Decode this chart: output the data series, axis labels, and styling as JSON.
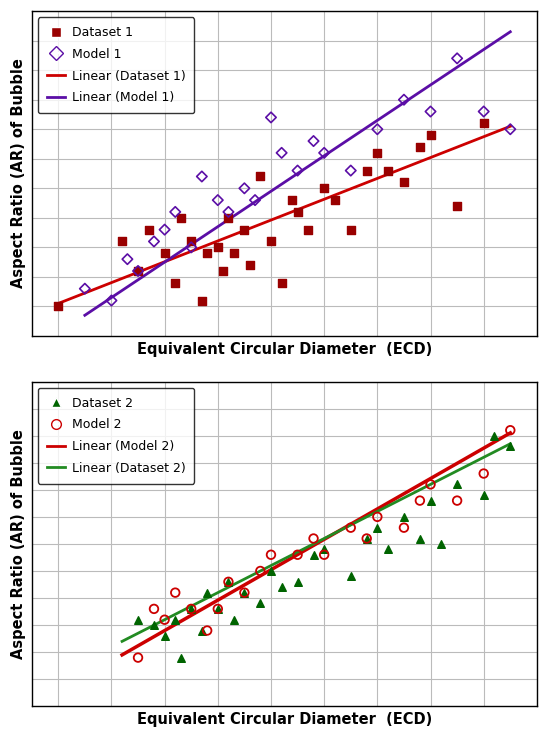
{
  "plot1": {
    "dataset1_x": [
      1.0,
      2.2,
      2.5,
      2.7,
      3.0,
      3.2,
      3.3,
      3.5,
      3.7,
      3.8,
      4.0,
      4.1,
      4.2,
      4.3,
      4.5,
      4.6,
      4.8,
      5.0,
      5.2,
      5.4,
      5.5,
      5.7,
      6.0,
      6.2,
      6.5,
      6.8,
      7.0,
      7.2,
      7.5,
      7.8,
      8.0,
      8.5,
      9.0
    ],
    "dataset1_y": [
      1.0,
      2.1,
      1.6,
      2.3,
      1.9,
      1.4,
      2.5,
      2.1,
      1.1,
      1.9,
      2.0,
      1.6,
      2.5,
      1.9,
      2.3,
      1.7,
      3.2,
      2.1,
      1.4,
      2.8,
      2.6,
      2.3,
      3.0,
      2.8,
      2.3,
      3.3,
      3.6,
      3.3,
      3.1,
      3.7,
      3.9,
      2.7,
      4.1
    ],
    "model1_x": [
      1.5,
      2.0,
      2.3,
      2.5,
      2.8,
      3.0,
      3.2,
      3.5,
      3.7,
      4.0,
      4.2,
      4.5,
      4.7,
      5.0,
      5.2,
      5.5,
      5.8,
      6.0,
      6.5,
      7.0,
      7.5,
      8.0,
      8.5,
      9.0,
      9.5
    ],
    "model1_y": [
      1.3,
      1.1,
      1.8,
      1.6,
      2.1,
      2.3,
      2.6,
      2.0,
      3.2,
      2.8,
      2.6,
      3.0,
      2.8,
      4.2,
      3.6,
      3.3,
      3.8,
      3.6,
      3.3,
      4.0,
      4.5,
      4.3,
      5.2,
      4.3,
      4.0
    ],
    "line1_x": [
      1.0,
      9.5
    ],
    "line1_y": [
      1.05,
      4.05
    ],
    "line2_x": [
      1.5,
      9.5
    ],
    "line2_y": [
      0.85,
      5.65
    ],
    "ylabel": "Aspect Ratio (AR) of Bubble",
    "xlabel": "Equivalent Circular Diameter  (ECD)",
    "legend_labels": [
      "Dataset 1",
      "Model 1",
      "Linear (Dataset 1)",
      "Linear (Model 1)"
    ],
    "dataset1_color": "#990000",
    "model1_color": "#5B0EA6",
    "line1_color": "#CC0000",
    "line2_color": "#5B0EA6",
    "xlim": [
      0.5,
      10.0
    ],
    "ylim": [
      0.5,
      6.0
    ],
    "xticks": [
      1.0,
      2.0,
      3.0,
      4.0,
      5.0,
      6.0,
      7.0,
      8.0,
      9.0,
      10.0
    ],
    "yticks": [
      1.0,
      1.5,
      2.0,
      2.5,
      3.0,
      3.5,
      4.0,
      4.5,
      5.0,
      5.5,
      6.0
    ]
  },
  "plot2": {
    "dataset2_x": [
      2.5,
      2.8,
      3.0,
      3.2,
      3.3,
      3.5,
      3.7,
      3.8,
      4.0,
      4.2,
      4.3,
      4.5,
      4.8,
      5.0,
      5.2,
      5.5,
      5.8,
      6.0,
      6.5,
      6.8,
      7.0,
      7.2,
      7.5,
      7.8,
      8.0,
      8.2,
      8.5,
      9.0,
      9.2,
      9.5
    ],
    "dataset2_y": [
      2.1,
      2.0,
      1.8,
      2.1,
      1.4,
      2.3,
      1.9,
      2.6,
      2.3,
      2.8,
      2.1,
      2.6,
      2.4,
      3.0,
      2.7,
      2.8,
      3.3,
      3.4,
      2.9,
      3.6,
      3.8,
      3.4,
      4.0,
      3.6,
      4.3,
      3.5,
      4.6,
      4.4,
      5.5,
      5.3
    ],
    "model2_x": [
      2.5,
      2.8,
      3.0,
      3.2,
      3.5,
      3.8,
      4.0,
      4.2,
      4.5,
      4.8,
      5.0,
      5.5,
      5.8,
      6.0,
      6.5,
      6.8,
      7.0,
      7.5,
      7.8,
      8.0,
      8.5,
      9.0,
      9.5
    ],
    "model2_y": [
      1.4,
      2.3,
      2.1,
      2.6,
      2.3,
      1.9,
      2.3,
      2.8,
      2.6,
      3.0,
      3.3,
      3.3,
      3.6,
      3.3,
      3.8,
      3.6,
      4.0,
      3.8,
      4.3,
      4.6,
      4.3,
      4.8,
      5.6
    ],
    "line1_x": [
      2.2,
      9.5
    ],
    "line1_y": [
      1.45,
      5.55
    ],
    "line2_x": [
      2.2,
      9.5
    ],
    "line2_y": [
      1.7,
      5.35
    ],
    "ylabel": "Aspect Ratio (AR) of Bubble",
    "xlabel": "Equivalent Circular Diameter  (ECD)",
    "legend_labels": [
      "Dataset 2",
      "Model 2",
      "Linear (Model 2)",
      "Linear (Dataset 2)"
    ],
    "dataset2_color": "#006400",
    "model2_color": "#CC0000",
    "line1_color": "#CC0000",
    "line2_color": "#228B22",
    "xlim": [
      0.5,
      10.0
    ],
    "ylim": [
      0.5,
      6.5
    ],
    "xticks": [
      1.0,
      2.0,
      3.0,
      4.0,
      5.0,
      6.0,
      7.0,
      8.0,
      9.0,
      10.0
    ],
    "yticks": [
      1.0,
      1.5,
      2.0,
      2.5,
      3.0,
      3.5,
      4.0,
      4.5,
      5.0,
      5.5,
      6.0,
      6.5
    ]
  },
  "background_color": "#ffffff",
  "grid_color": "#bbbbbb",
  "label_fontsize": 10.5,
  "legend_fontsize": 9.0
}
